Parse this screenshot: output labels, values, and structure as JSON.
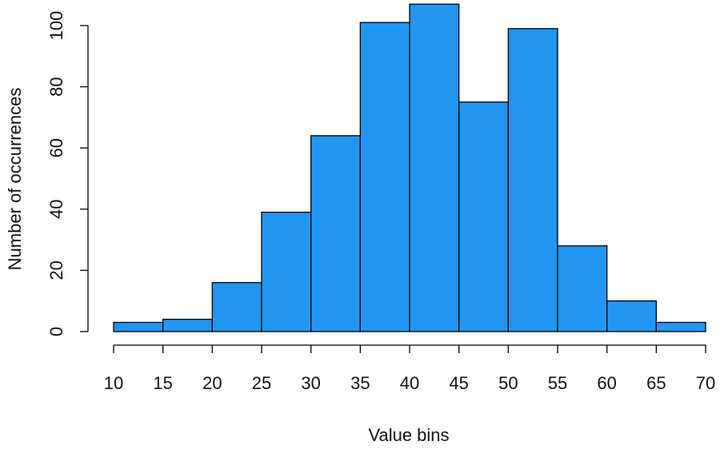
{
  "chart_data": {
    "type": "bar",
    "bins": [
      {
        "start": 10,
        "end": 15,
        "count": 3
      },
      {
        "start": 15,
        "end": 20,
        "count": 4
      },
      {
        "start": 20,
        "end": 25,
        "count": 16
      },
      {
        "start": 25,
        "end": 30,
        "count": 39
      },
      {
        "start": 30,
        "end": 35,
        "count": 64
      },
      {
        "start": 35,
        "end": 40,
        "count": 101
      },
      {
        "start": 40,
        "end": 45,
        "count": 107
      },
      {
        "start": 45,
        "end": 50,
        "count": 75
      },
      {
        "start": 50,
        "end": 55,
        "count": 99
      },
      {
        "start": 55,
        "end": 60,
        "count": 28
      },
      {
        "start": 60,
        "end": 65,
        "count": 10
      },
      {
        "start": 65,
        "end": 70,
        "count": 3
      }
    ],
    "xlabel": "Value bins",
    "ylabel": "Number of occurrences",
    "xticks": [
      "10",
      "15",
      "20",
      "25",
      "30",
      "35",
      "40",
      "45",
      "50",
      "55",
      "60",
      "65",
      "70"
    ],
    "yticks": [
      "0",
      "20",
      "40",
      "60",
      "80",
      "100"
    ],
    "xlim": [
      10,
      70
    ],
    "ylim": [
      0,
      100
    ],
    "bar_color": "#2196f3",
    "grid": false
  }
}
